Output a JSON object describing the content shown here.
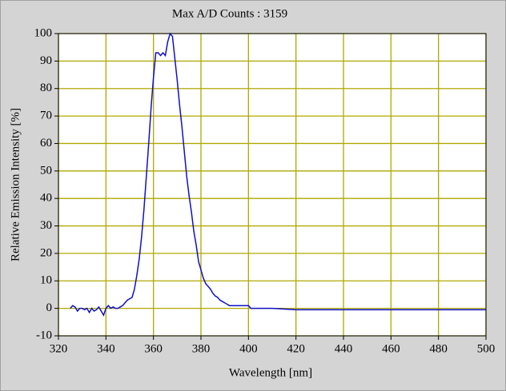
{
  "chart_data": {
    "type": "line",
    "title": "Max A/D Counts : 3159",
    "xlabel": "Wavelength [nm]",
    "ylabel": "Relative Emission Intensity [%]",
    "xlim": [
      320,
      500
    ],
    "xticks": [
      320,
      340,
      360,
      380,
      400,
      420,
      440,
      460,
      480,
      500
    ],
    "ylim": [
      -10,
      100
    ],
    "yticks": [
      -10,
      0,
      10,
      20,
      30,
      40,
      50,
      60,
      70,
      80,
      90,
      100
    ],
    "grid": true,
    "grid_color": "#b0a800",
    "color": "#1010c8",
    "x": [
      325,
      326,
      327,
      328,
      329,
      330,
      331,
      332,
      333,
      334,
      335,
      336,
      337,
      338,
      339,
      340,
      341,
      342,
      343,
      344,
      345,
      346,
      347,
      348,
      349,
      350,
      351,
      352,
      353,
      354,
      355,
      356,
      357,
      358,
      359,
      360,
      361,
      362,
      363,
      364,
      365,
      366,
      367,
      368,
      369,
      370,
      371,
      372,
      373,
      374,
      375,
      376,
      377,
      378,
      379,
      380,
      381,
      382,
      383,
      384,
      385,
      386,
      387,
      388,
      389,
      390,
      391,
      392,
      395,
      400,
      401,
      410,
      420,
      430,
      440,
      450,
      460,
      470,
      480,
      490,
      500
    ],
    "values": [
      0,
      1,
      0.5,
      -1,
      0,
      0,
      -0.5,
      0,
      -1.5,
      0,
      -1,
      -0.5,
      0.5,
      -1,
      -2.5,
      0,
      1,
      0,
      0.5,
      0,
      0,
      0.5,
      1,
      2,
      3,
      3.5,
      4,
      7,
      12,
      18,
      26,
      36,
      48,
      60,
      73,
      84,
      93,
      93,
      92,
      93,
      92,
      97,
      100,
      99,
      91,
      83,
      74,
      66,
      57,
      48,
      41,
      35,
      28,
      23,
      17,
      14,
      11,
      9,
      8,
      7,
      5.5,
      4.5,
      4,
      3,
      2.5,
      2,
      1.5,
      1,
      1,
      1,
      0,
      0,
      -0.5,
      -0.5,
      -0.5,
      -0.5,
      -0.5,
      -0.5,
      -0.5,
      -0.5,
      -0.5
    ]
  }
}
